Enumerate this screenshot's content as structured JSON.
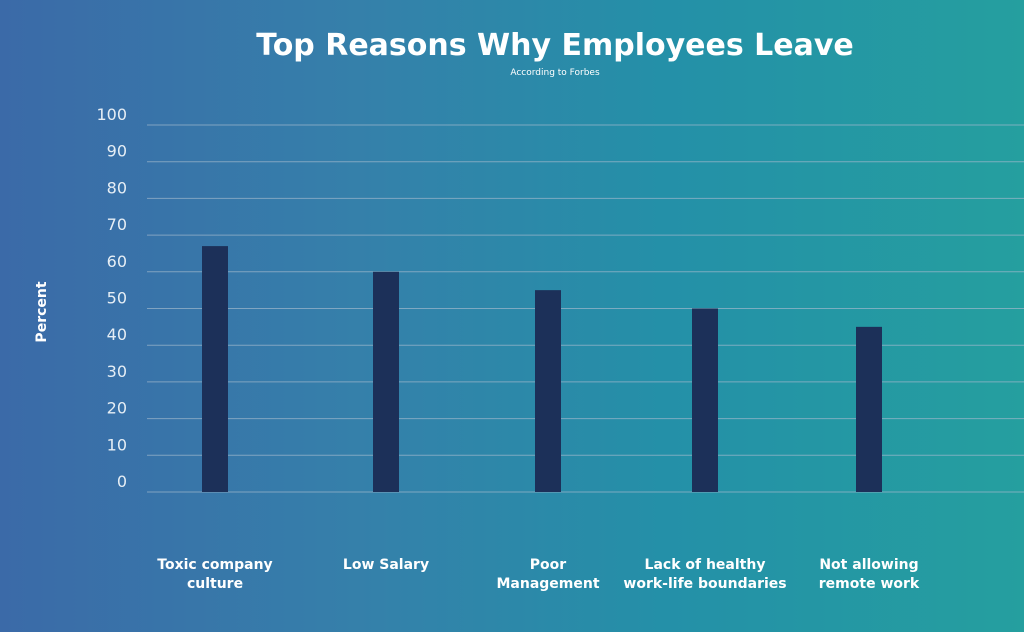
{
  "chart_data": {
    "type": "bar",
    "title": "Top Reasons Why Employees Leave",
    "subtitle": "According to Forbes",
    "xlabel": "",
    "ylabel": "Percent",
    "ylim": [
      0,
      100
    ],
    "yticks": [
      0,
      10,
      20,
      30,
      40,
      50,
      60,
      70,
      80,
      90,
      100
    ],
    "grid": true,
    "categories": [
      [
        "Toxic company",
        "culture"
      ],
      [
        "Low Salary"
      ],
      [
        "Poor",
        "Management"
      ],
      [
        "Lack of healthy",
        "work-life boundaries"
      ],
      [
        "Not allowing",
        "remote work"
      ]
    ],
    "values": [
      67,
      60,
      55,
      50,
      45
    ],
    "bar_color": "#1c3059",
    "grid_color": "#9fb8cc"
  }
}
